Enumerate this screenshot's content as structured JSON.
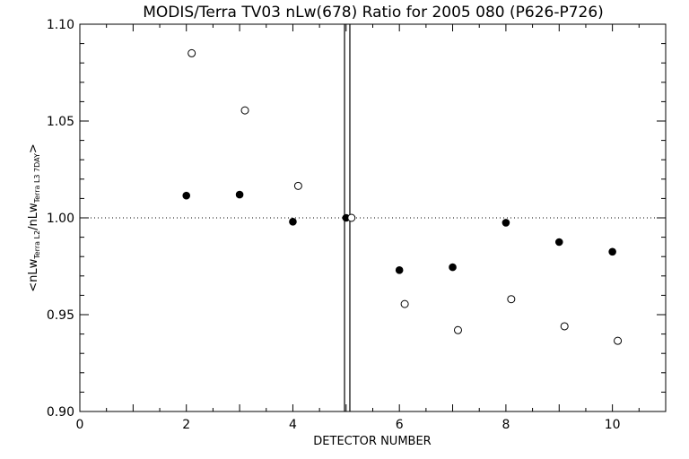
{
  "chart_data": {
    "type": "scatter",
    "title": "MODIS/Terra TV03 nLw(678) Ratio for 2005 080 (P626-P726)",
    "xlabel": "DETECTOR NUMBER",
    "ylabel": {
      "prefix": "<nLw",
      "sub1": "Terra L2",
      "mid": "/nLw",
      "sub2": "Terra L3 7DAY",
      "suffix": ">"
    },
    "xlim": [
      0,
      11
    ],
    "ylim": [
      0.9,
      1.1
    ],
    "x_ticks": [
      0,
      2,
      4,
      6,
      8,
      10
    ],
    "x_tick_labels": [
      "0",
      "2",
      "4",
      "6",
      "8",
      "10"
    ],
    "y_ticks": [
      0.9,
      0.95,
      1.0,
      1.05,
      1.1
    ],
    "y_tick_labels": [
      "0.90",
      "0.95",
      "1.00",
      "1.05",
      "1.10"
    ],
    "reference_line_y": 1.0,
    "vertical_lines_x": [
      4.97,
      5.07
    ],
    "series": [
      {
        "marker": "filled-circle",
        "x": [
          2,
          3,
          4,
          5,
          6,
          7,
          8,
          9,
          10
        ],
        "y": [
          1.0115,
          1.012,
          0.998,
          1.0,
          0.973,
          0.9745,
          0.9975,
          0.9875,
          0.9825
        ]
      },
      {
        "marker": "open-circle",
        "x": [
          2.1,
          3.1,
          4.1,
          5.1,
          6.1,
          7.1,
          8.1,
          9.1,
          10.1
        ],
        "y": [
          1.085,
          1.0555,
          1.0165,
          1.0,
          0.9555,
          0.942,
          0.958,
          0.944,
          0.9365
        ]
      }
    ]
  }
}
